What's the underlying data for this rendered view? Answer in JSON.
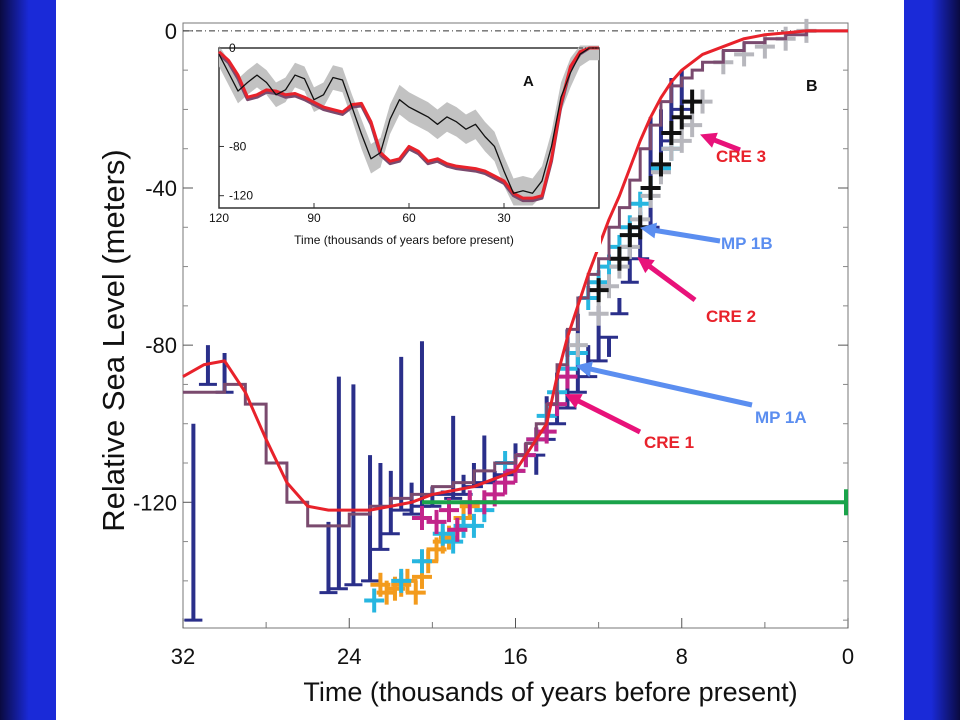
{
  "chart_data": [
    {
      "type": "line",
      "panel": "B",
      "xlabel": "Time (thousands of years before present)",
      "ylabel": "Relative Sea Level (meters)",
      "xlim": [
        32,
        0
      ],
      "ylim": [
        -152,
        2
      ],
      "x_ticks": [
        32,
        24,
        16,
        8,
        0
      ],
      "y_ticks": [
        0,
        -40,
        -80,
        -120
      ],
      "series": [
        {
          "color": "#e8222b",
          "style": "smooth-curve",
          "x": [
            32,
            31,
            30,
            29,
            28,
            27,
            26,
            25,
            24,
            23,
            22,
            21,
            20,
            19,
            18,
            17,
            16,
            15.5,
            15,
            14.5,
            14,
            13.5,
            13,
            12.5,
            12,
            11.5,
            11,
            10.5,
            10,
            9.5,
            9,
            8.5,
            8,
            7.5,
            7,
            6,
            5,
            4,
            3,
            2,
            1,
            0
          ],
          "y": [
            -88,
            -85,
            -84,
            -92,
            -104,
            -115,
            -121,
            -122,
            -122,
            -122,
            -121,
            -120,
            -118,
            -117,
            -116,
            -114,
            -112,
            -108,
            -104,
            -100,
            -88,
            -78,
            -70,
            -62,
            -55,
            -48,
            -42,
            -35,
            -28,
            -22,
            -17,
            -13,
            -10,
            -8,
            -6,
            -4,
            -2,
            -1,
            -0.5,
            0,
            0,
            0
          ]
        },
        {
          "color": "#7a4a6e",
          "style": "step",
          "x": [
            32,
            31,
            30,
            29,
            28,
            27,
            26,
            25,
            24,
            23,
            22,
            21,
            20,
            19,
            18,
            17,
            16,
            15.5,
            15,
            14.5,
            14,
            13.5,
            13,
            12.5,
            12,
            11.5,
            11,
            10.5,
            10,
            9.5,
            9,
            8.5,
            8,
            7.5,
            7,
            6,
            5,
            4,
            3,
            2,
            1,
            0
          ],
          "y": [
            -92,
            -92,
            -90,
            -95,
            -110,
            -120,
            -126,
            -126,
            -123,
            -121,
            -119,
            -118,
            -116,
            -115,
            -112,
            -110,
            -108,
            -105,
            -100,
            -95,
            -85,
            -76,
            -68,
            -62,
            -58,
            -50,
            -45,
            -38,
            -30,
            -24,
            -18,
            -14,
            -12,
            -10,
            -8,
            -5,
            -3,
            -2,
            -1,
            0,
            0,
            0
          ]
        }
      ],
      "markers": [
        {
          "color": "#2a2f8a",
          "kind": "range-bar",
          "x": [
            31.5,
            30.8,
            30,
            25,
            24.5,
            23.8,
            23,
            22.5,
            22,
            21.5,
            21,
            20.5,
            20,
            19.5,
            19,
            18.5,
            18,
            17.5,
            17,
            16.5,
            16,
            15,
            14.5,
            14,
            13.5,
            13,
            12.5,
            12,
            11.5,
            11,
            10.5,
            10,
            9.5,
            9,
            8.5,
            8
          ],
          "top": [
            -100,
            -80,
            -82,
            -125,
            -88,
            -90,
            -108,
            -110,
            -112,
            -83,
            -115,
            -79,
            -116,
            -117,
            -98,
            -113,
            -110,
            -103,
            -112,
            -118,
            -105,
            -113,
            -93,
            -87,
            -76,
            -72,
            -80,
            -70,
            -83,
            -68,
            -55,
            -46,
            -22,
            -20,
            -12,
            -10
          ],
          "bottom": [
            -150,
            -90,
            -92,
            -143,
            -142,
            -141,
            -140,
            -132,
            -128,
            -122,
            -123,
            -121,
            -121,
            -118,
            -119,
            -118,
            -116,
            -115,
            -115,
            -113,
            -112,
            -108,
            -104,
            -100,
            -96,
            -92,
            -88,
            -84,
            -78,
            -72,
            -64,
            -58,
            -50,
            -36,
            -28,
            -20
          ]
        },
        {
          "color": "#f39b1d",
          "kind": "cross",
          "x": [
            22.5,
            22.2,
            21.8,
            21.5,
            21.2,
            20.8,
            20.5,
            20.2,
            19.8,
            19.5,
            19.2,
            18.8,
            18.5,
            18.2
          ],
          "y": [
            -141,
            -143,
            -142,
            -141,
            -140,
            -143,
            -139,
            -135,
            -132,
            -130,
            -129,
            -127,
            -124,
            -121
          ]
        },
        {
          "color": "#27b6e0",
          "kind": "cross",
          "x": [
            22.8,
            21.5,
            20.5,
            19.5,
            19.0,
            18.5,
            18.0,
            17.5,
            16.5,
            16.0,
            15.5,
            15.0,
            14.5,
            14.0,
            13.5,
            13.0,
            12.5,
            12.0,
            11.5,
            11.0,
            10.5,
            10.0,
            9.5,
            9.0,
            8.5
          ],
          "y": [
            -145,
            -140,
            -135,
            -128,
            -130,
            -126,
            -126,
            -122,
            -110,
            -112,
            -108,
            -104,
            -98,
            -92,
            -86,
            -82,
            -68,
            -64,
            -60,
            -55,
            -50,
            -44,
            -40,
            -35,
            -30
          ]
        },
        {
          "color": "#c2248a",
          "kind": "cross",
          "x": [
            20.5,
            19.8,
            19.2,
            18.8,
            18.2,
            17.5,
            17.0,
            16.5,
            16.0,
            15.5,
            15.0,
            14.5,
            14.0,
            13.5
          ],
          "y": [
            -124,
            -125,
            -122,
            -127,
            -120,
            -120,
            -118,
            -115,
            -112,
            -108,
            -104,
            -102,
            -95,
            -88
          ]
        },
        {
          "color": "#b7b7bd",
          "kind": "cross",
          "x": [
            13.0,
            12.0,
            11.5,
            11.0,
            10.5,
            10.0,
            9.5,
            9.0,
            8.5,
            8.0,
            7.5,
            7.0,
            6.0,
            5.0,
            4.0,
            3.0,
            2.0
          ],
          "y": [
            -80,
            -72,
            -65,
            -60,
            -55,
            -48,
            -42,
            -36,
            -30,
            -28,
            -24,
            -18,
            -8,
            -6,
            -4,
            -2,
            0
          ]
        },
        {
          "color": "#111111",
          "kind": "cross",
          "x": [
            12.0,
            11.0,
            10.5,
            10.0,
            9.5,
            9.0,
            8.5,
            8.0,
            7.5
          ],
          "y": [
            -66,
            -58,
            -52,
            -50,
            -40,
            -34,
            -26,
            -22,
            -18
          ]
        }
      ],
      "reference_line": {
        "color": "#1aa34a",
        "y": -120,
        "x_from": 20.5,
        "x_to": 0
      },
      "annotations": [
        {
          "text": "CRE 3",
          "color": "#e8222b",
          "arrow_color": "#e8127a",
          "x": 7.3,
          "y": -26
        },
        {
          "text": "MP 1B",
          "color": "#5b8ef0",
          "arrow_color": "#5b8ef0",
          "x": 10.2,
          "y": -50
        },
        {
          "text": "CRE 2",
          "color": "#e8222b",
          "arrow_color": "#e8127a",
          "x": 10.3,
          "y": -57
        },
        {
          "text": "MP 1A",
          "color": "#5b8ef0",
          "arrow_color": "#5b8ef0",
          "x": 13.3,
          "y": -85
        },
        {
          "text": "CRE 1",
          "color": "#e8222b",
          "arrow_color": "#e8127a",
          "x": 13.8,
          "y": -92
        }
      ]
    },
    {
      "type": "area",
      "panel": "A",
      "xlabel": "Time (thousands of years before present)",
      "ylabel": "",
      "xlim": [
        120,
        0
      ],
      "ylim": [
        -130,
        0
      ],
      "x_ticks": [
        120,
        90,
        60,
        30
      ],
      "y_ticks": [
        0,
        -80,
        -120
      ],
      "x": [
        120,
        117,
        114,
        111,
        108,
        105,
        102,
        99,
        96,
        93,
        90,
        87,
        84,
        81,
        78,
        75,
        72,
        69,
        66,
        63,
        60,
        57,
        54,
        51,
        48,
        45,
        42,
        39,
        36,
        33,
        30,
        27,
        24,
        21,
        18,
        15,
        12,
        9,
        6,
        3,
        0
      ],
      "series": [
        {
          "color": "#111111",
          "style": "mean",
          "y": [
            -5,
            -20,
            -35,
            -28,
            -22,
            -28,
            -38,
            -34,
            -22,
            -25,
            -42,
            -38,
            -24,
            -26,
            -48,
            -70,
            -90,
            -85,
            -58,
            -42,
            -48,
            -52,
            -56,
            -62,
            -56,
            -60,
            -66,
            -62,
            -72,
            -80,
            -100,
            -118,
            -116,
            -118,
            -108,
            -80,
            -40,
            -20,
            -5,
            0,
            0
          ]
        },
        {
          "color": "#b5b5b5",
          "style": "band-upper",
          "y": [
            2,
            -10,
            -25,
            -18,
            -12,
            -18,
            -28,
            -24,
            -12,
            -15,
            -32,
            -28,
            -14,
            -16,
            -38,
            -58,
            -78,
            -73,
            -46,
            -30,
            -36,
            -40,
            -44,
            -50,
            -44,
            -48,
            -54,
            -50,
            -60,
            -68,
            -88,
            -106,
            -104,
            -106,
            -96,
            -68,
            -28,
            -8,
            2,
            2,
            2
          ]
        },
        {
          "color": "#b5b5b5",
          "style": "band-lower",
          "y": [
            -15,
            -30,
            -45,
            -38,
            -32,
            -38,
            -48,
            -44,
            -32,
            -35,
            -52,
            -48,
            -34,
            -36,
            -58,
            -82,
            -102,
            -97,
            -70,
            -54,
            -60,
            -64,
            -68,
            -74,
            -68,
            -72,
            -78,
            -74,
            -84,
            -92,
            -112,
            -128,
            -128,
            -128,
            -120,
            -92,
            -52,
            -32,
            -15,
            -10,
            -10
          ]
        },
        {
          "color": "#e8222b",
          "style": "model",
          "y": [
            -3,
            -10,
            -22,
            -40,
            -38,
            -34,
            -35,
            -38,
            -37,
            -40,
            -44,
            -48,
            -50,
            -52,
            -46,
            -45,
            -60,
            -85,
            -92,
            -90,
            -80,
            -84,
            -92,
            -90,
            -94,
            -96,
            -97,
            -98,
            -100,
            -104,
            -108,
            -118,
            -122,
            -122,
            -120,
            -90,
            -45,
            -15,
            -3,
            0,
            0
          ]
        },
        {
          "color": "#7a4a6e",
          "style": "step",
          "y": [
            -5,
            -12,
            -25,
            -42,
            -40,
            -36,
            -37,
            -40,
            -39,
            -42,
            -46,
            -50,
            -52,
            -54,
            -48,
            -47,
            -62,
            -87,
            -94,
            -92,
            -82,
            -86,
            -94,
            -92,
            -96,
            -98,
            -99,
            -100,
            -102,
            -106,
            -110,
            -120,
            -124,
            -124,
            -122,
            -92,
            -47,
            -17,
            -5,
            0,
            0
          ]
        }
      ],
      "panel_label": "A"
    }
  ],
  "panel_labels": {
    "main": "B",
    "inset": "A"
  }
}
